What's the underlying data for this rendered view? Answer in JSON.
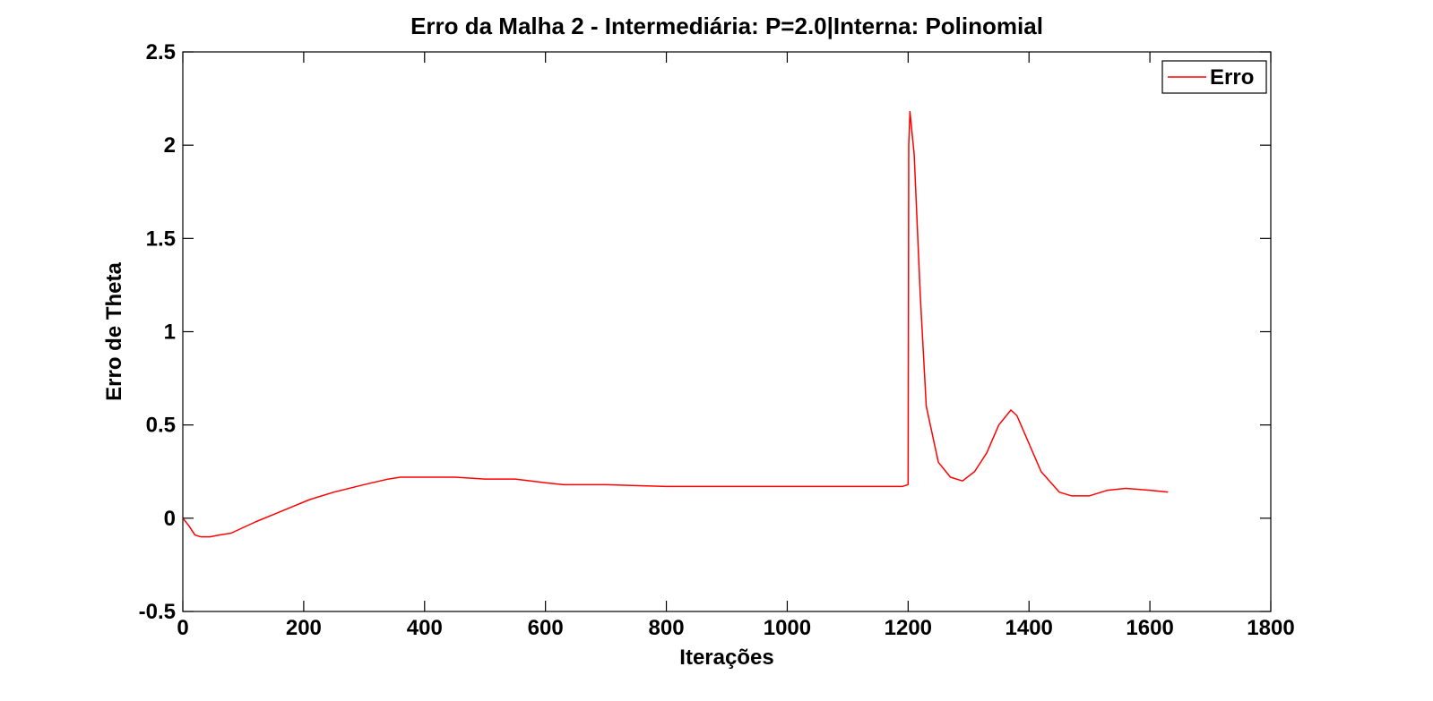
{
  "chart_data": {
    "type": "line",
    "title": "Erro da Malha 2 - Intermediária: P=2.0|Interna: Polinomial",
    "xlabel": "Iterações",
    "ylabel": "Erro de Theta",
    "xlim": [
      0,
      1800
    ],
    "ylim": [
      -0.5,
      2.5
    ],
    "xticks": [
      0,
      200,
      400,
      600,
      800,
      1000,
      1200,
      1400,
      1600,
      1800
    ],
    "xtick_labels": [
      "0",
      "200",
      "400",
      "600",
      "800",
      "1000",
      "1200",
      "1400",
      "1600",
      "1800"
    ],
    "yticks": [
      -0.5,
      0,
      0.5,
      1,
      1.5,
      2,
      2.5
    ],
    "ytick_labels": [
      "-0.5",
      "0",
      "0.5",
      "1",
      "1.5",
      "2",
      "2.5"
    ],
    "grid": false,
    "legend_position": "top-right",
    "series": [
      {
        "name": "Erro",
        "color": "#ff0000",
        "x": [
          0,
          10,
          20,
          30,
          45,
          60,
          80,
          100,
          120,
          150,
          180,
          210,
          250,
          300,
          340,
          360,
          380,
          400,
          450,
          500,
          550,
          600,
          630,
          700,
          800,
          900,
          1000,
          1100,
          1150,
          1190,
          1200,
          1201,
          1203,
          1210,
          1220,
          1230,
          1250,
          1270,
          1290,
          1310,
          1330,
          1350,
          1370,
          1380,
          1400,
          1420,
          1450,
          1470,
          1500,
          1530,
          1560,
          1600,
          1630
        ],
        "y": [
          0.0,
          -0.04,
          -0.09,
          -0.1,
          -0.1,
          -0.09,
          -0.08,
          -0.05,
          -0.02,
          0.02,
          0.06,
          0.1,
          0.14,
          0.18,
          0.21,
          0.22,
          0.22,
          0.22,
          0.22,
          0.21,
          0.21,
          0.19,
          0.18,
          0.18,
          0.17,
          0.17,
          0.17,
          0.17,
          0.17,
          0.17,
          0.18,
          2.0,
          2.18,
          1.95,
          1.2,
          0.6,
          0.3,
          0.22,
          0.2,
          0.25,
          0.35,
          0.5,
          0.58,
          0.55,
          0.4,
          0.25,
          0.14,
          0.12,
          0.12,
          0.15,
          0.16,
          0.15,
          0.14
        ]
      }
    ]
  }
}
